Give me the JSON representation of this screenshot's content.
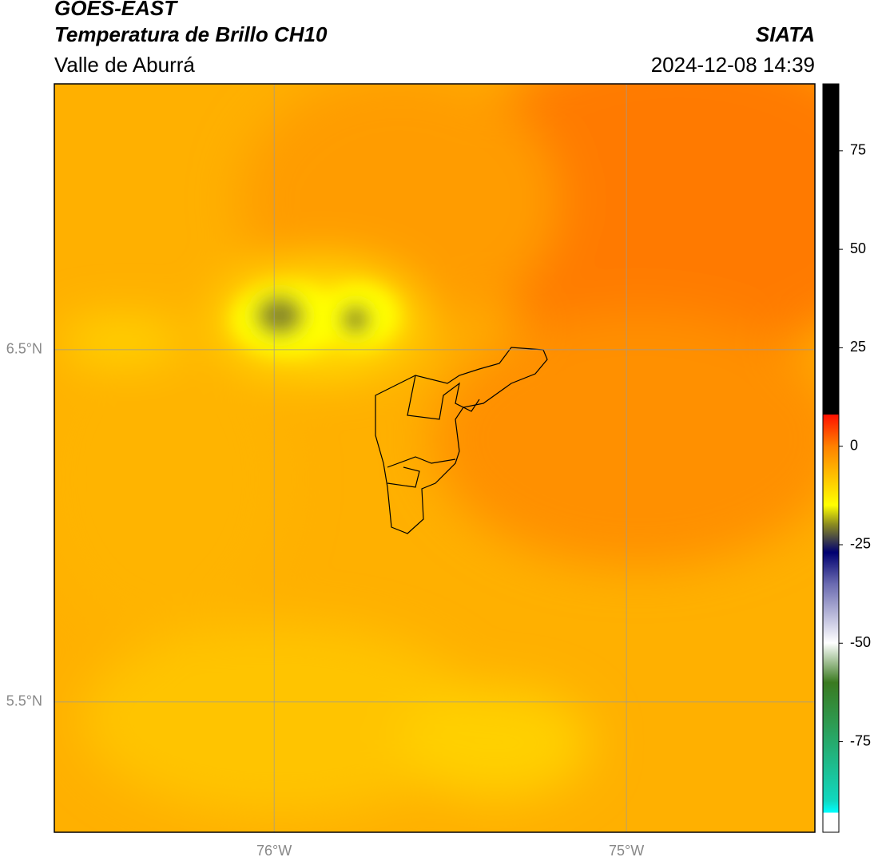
{
  "header": {
    "title": "GOES-EAST",
    "subtitle": "Temperatura de Brillo CH10",
    "region": "Valle de Aburrá",
    "source": "SIATA",
    "timestamp": "2024-12-08 14:39"
  },
  "map": {
    "xlim": [
      -76.624,
      -74.465
    ],
    "ylim": [
      5.13,
      7.255
    ],
    "xticks": [
      {
        "value": -76,
        "label": "76°W"
      },
      {
        "value": -75,
        "label": "75°W"
      }
    ],
    "yticks": [
      {
        "value": 6.5,
        "label": "6.5°N"
      },
      {
        "value": 5.5,
        "label": "5.5°N"
      }
    ],
    "grid": true
  },
  "colorbar": {
    "lim": [
      -98,
      92
    ],
    "ticks": [
      75,
      50,
      25,
      0,
      -25,
      -50,
      -75
    ]
  }
}
